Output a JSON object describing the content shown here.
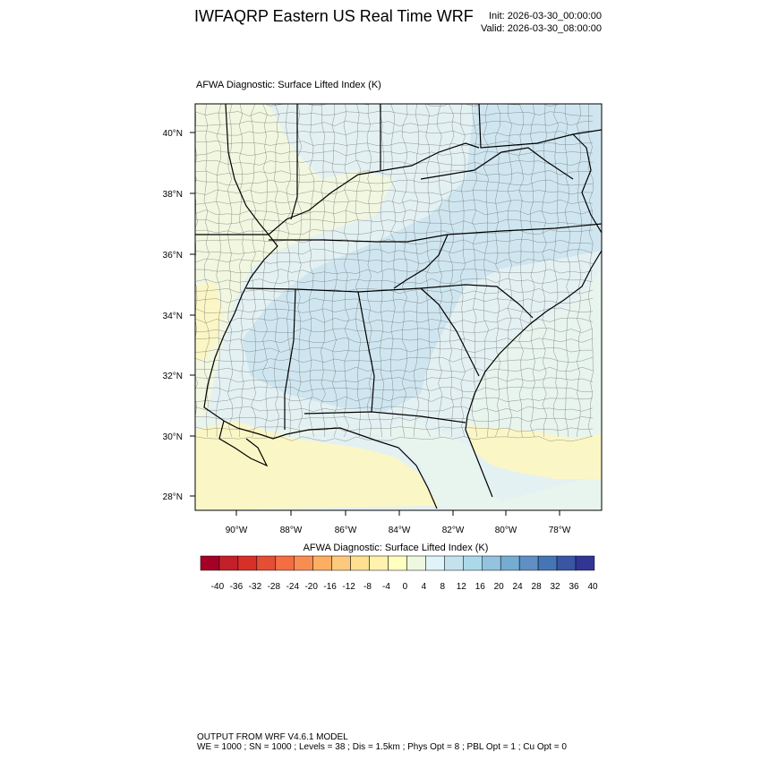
{
  "header": {
    "title": "IWFAQRP Eastern US Real Time WRF",
    "init": "Init: 2026-03-30_00:00:00",
    "valid": "Valid: 2026-03-30_08:00:00"
  },
  "plot": {
    "subtitle": "AFWA Diagnostic: Surface Lifted Index   (K)",
    "lat_labels": [
      "40°N",
      "38°N",
      "36°N",
      "34°N",
      "32°N",
      "30°N",
      "28°N"
    ],
    "lon_labels": [
      "90°W",
      "88°W",
      "86°W",
      "84°W",
      "82°W",
      "80°W",
      "78°W"
    ],
    "colors": {
      "land_base": "#e4f1f3",
      "ocean": "#e8f4ee",
      "positive_region": "#cfe6f0",
      "neutral_region": "#f1f7e0",
      "negative_region": "#fbf6c6"
    }
  },
  "colorbar": {
    "title": "AFWA Diagnostic: Surface Lifted Index  (K)",
    "labels": [
      "-40",
      "-36",
      "-32",
      "-28",
      "-24",
      "-20",
      "-16",
      "-12",
      "-8",
      "-4",
      "0",
      "4",
      "8",
      "12",
      "16",
      "20",
      "24",
      "28",
      "32",
      "36",
      "40"
    ],
    "colors": [
      "#a50026",
      "#c3202a",
      "#d73027",
      "#e44e34",
      "#f46d43",
      "#f88d52",
      "#fdae61",
      "#fec97c",
      "#fee090",
      "#fff2ae",
      "#ffffbf",
      "#eef8e0",
      "#e0f3f8",
      "#c3e2ee",
      "#abd9e9",
      "#93c3de",
      "#74add1",
      "#5f8fc4",
      "#4575b4",
      "#3a55a4",
      "#313695"
    ]
  },
  "footer": {
    "line1": "OUTPUT FROM WRF V4.6.1 MODEL",
    "line2": "WE = 1000 ; SN = 1000 ; Levels = 38 ; Dis = 1.5km ; Phys Opt = 8 ; PBL Opt = 1 ; Cu Opt = 0"
  }
}
